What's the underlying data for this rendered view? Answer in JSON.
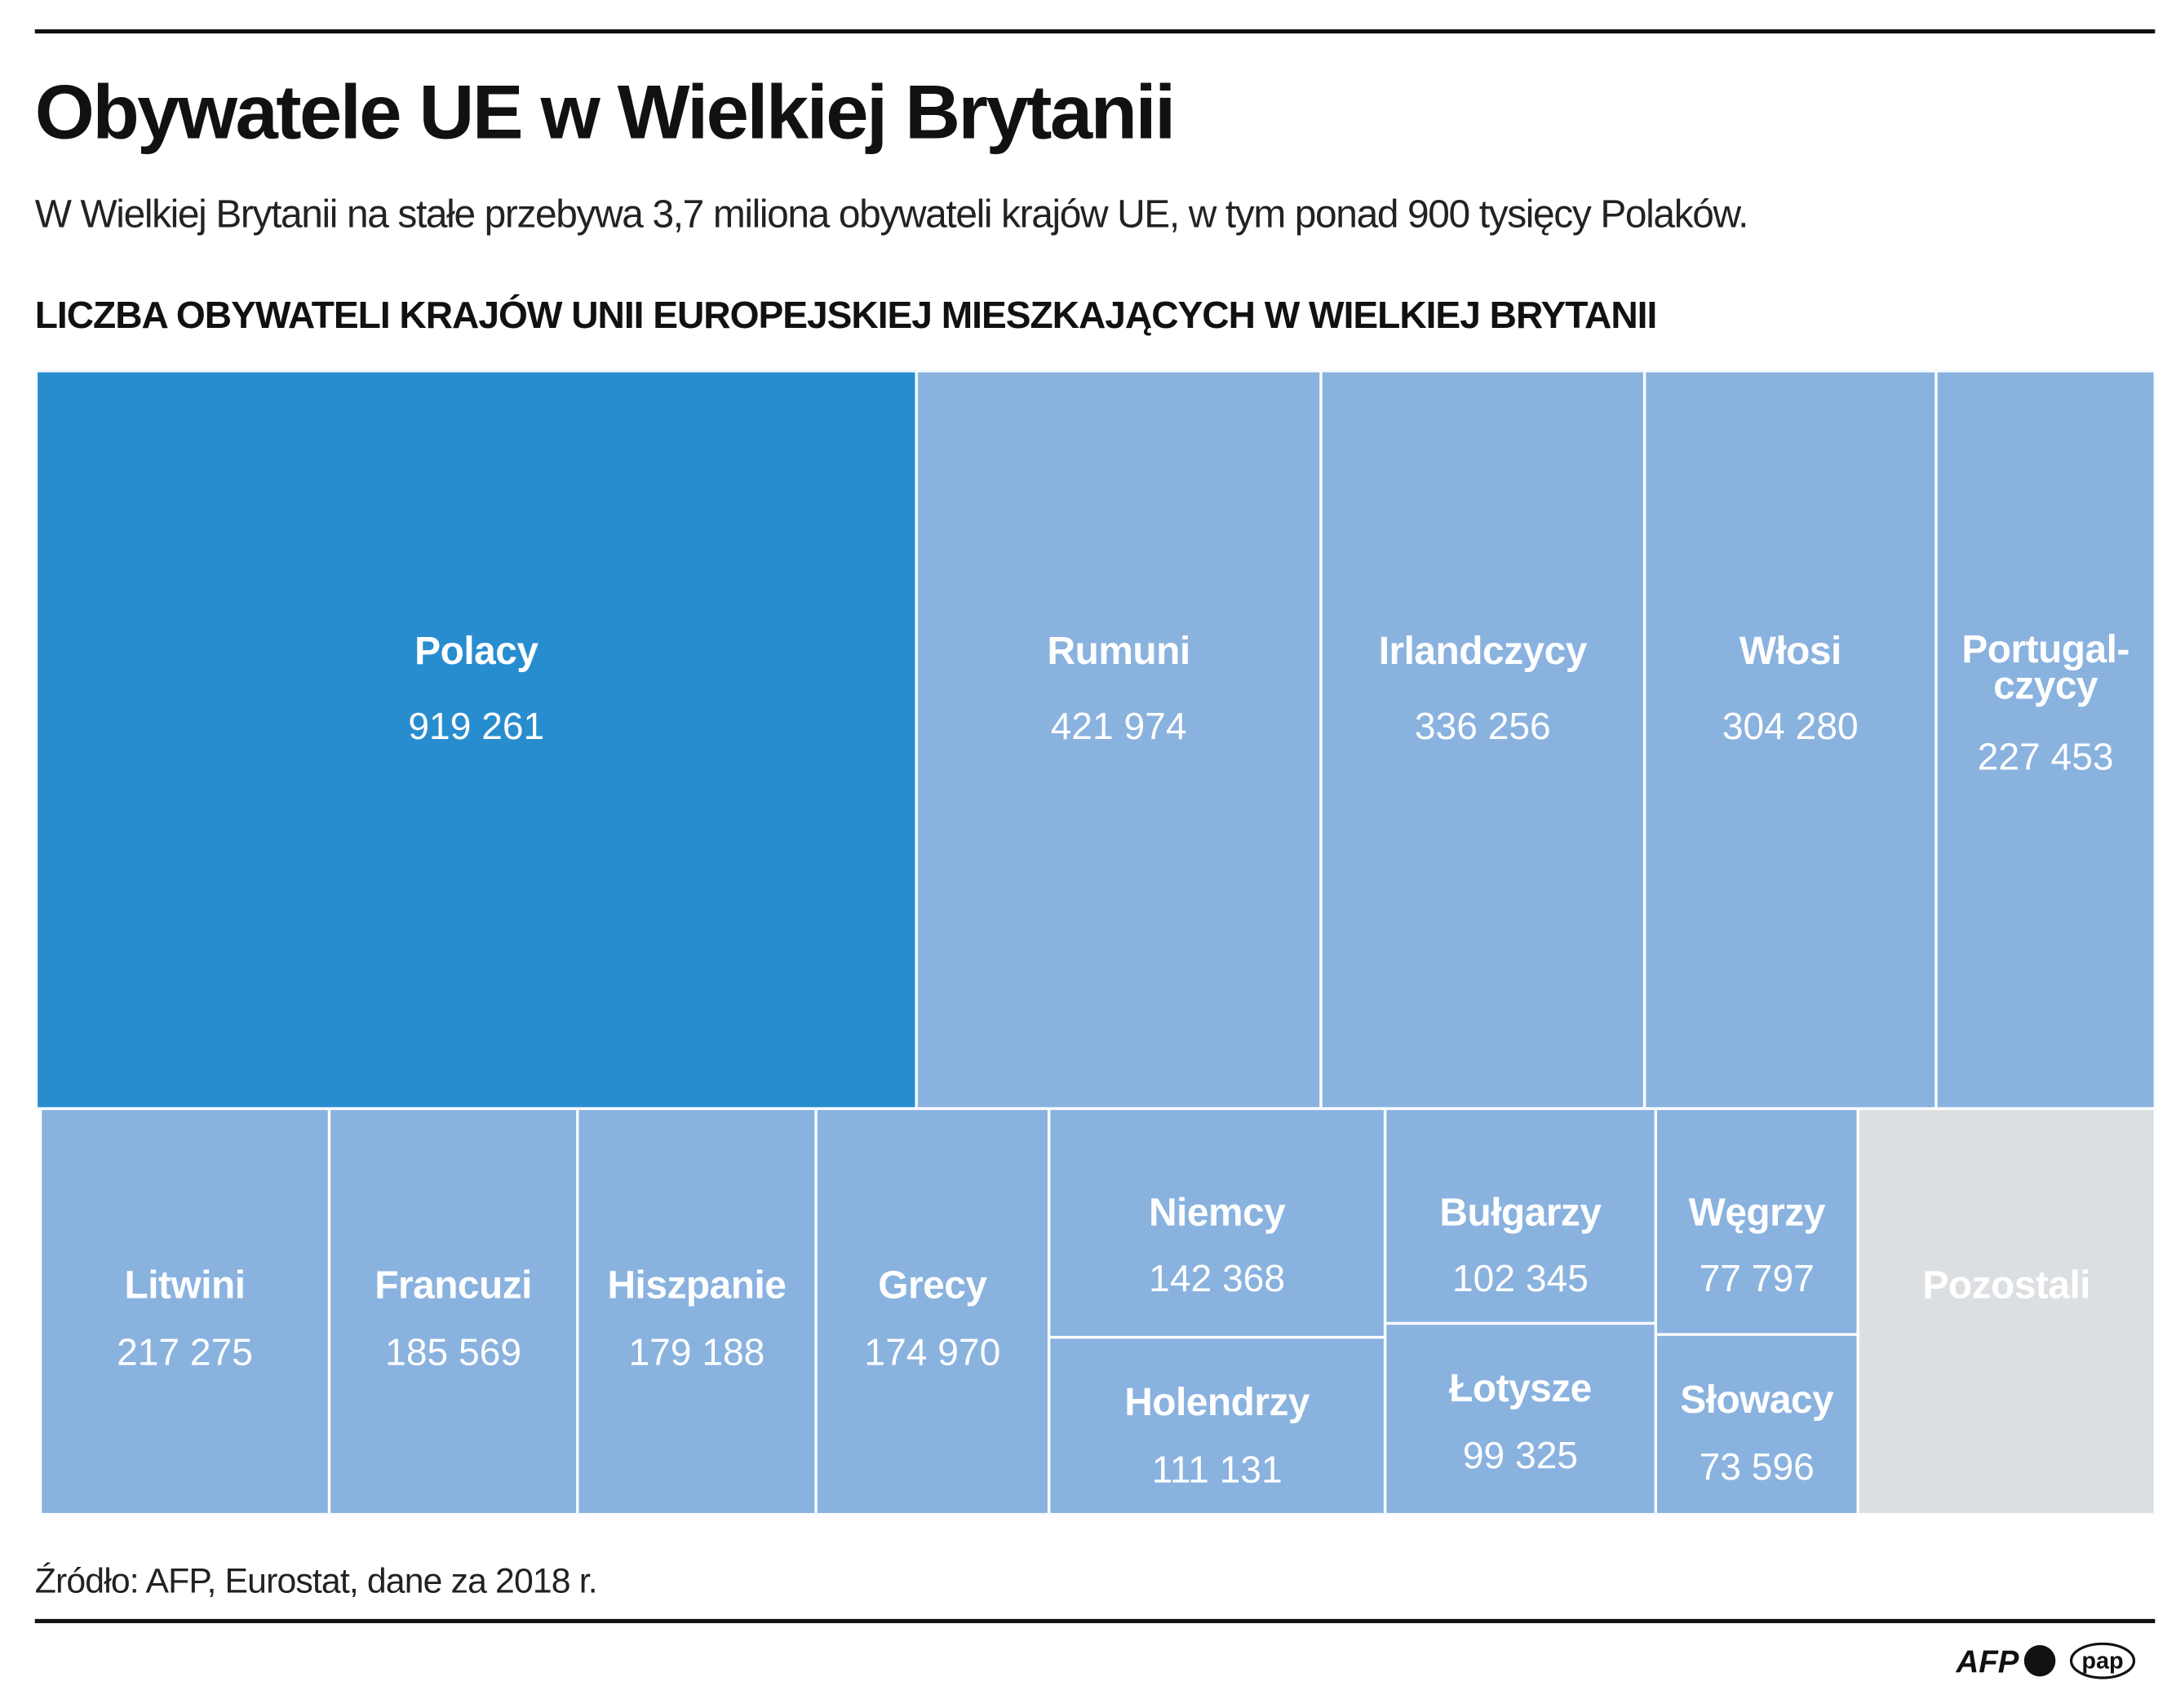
{
  "title": "Obywatele UE w Wielkiej Brytanii",
  "subtitle": "W Wielkiej Brytanii na stałe przebywa 3,7 miliona obywateli krajów UE, w tym ponad 900 tysięcy Polaków.",
  "source": "Źródło: AFP, Eurostat, dane za 2018 r.",
  "logos": [
    "AFP",
    "pap"
  ],
  "colors": {
    "highlight": "#288dcf",
    "default": "#89b2df",
    "other": "#dcdfe2"
  },
  "chart_data": {
    "type": "treemap",
    "title": "LICZBA OBYWATELI KRAJÓW UNII EUROPEJSKIEJ MIESZKAJĄCYCH W WIELKIEJ BRYTANII",
    "items": [
      {
        "label": "Polacy",
        "value": 919261,
        "value_text": "919 261"
      },
      {
        "label": "Rumuni",
        "value": 421974,
        "value_text": "421 974"
      },
      {
        "label": "Irlandczycy",
        "value": 336256,
        "value_text": "336 256"
      },
      {
        "label": "Włosi",
        "value": 304280,
        "value_text": "304 280"
      },
      {
        "label": "Portugal-\nczycy",
        "value": 227453,
        "value_text": "227 453"
      },
      {
        "label": "Litwini",
        "value": 217275,
        "value_text": "217 275"
      },
      {
        "label": "Francuzi",
        "value": 185569,
        "value_text": "185 569"
      },
      {
        "label": "Hiszpanie",
        "value": 179188,
        "value_text": "179 188"
      },
      {
        "label": "Grecy",
        "value": 174970,
        "value_text": "174 970"
      },
      {
        "label": "Niemcy",
        "value": 142368,
        "value_text": "142 368"
      },
      {
        "label": "Holendrzy",
        "value": 111131,
        "value_text": "111 131"
      },
      {
        "label": "Bułgarzy",
        "value": 102345,
        "value_text": "102 345"
      },
      {
        "label": "Łotysze",
        "value": 99325,
        "value_text": "99 325"
      },
      {
        "label": "Węgrzy",
        "value": 77797,
        "value_text": "77 797"
      },
      {
        "label": "Słowacy",
        "value": 73596,
        "value_text": "73 596"
      },
      {
        "label": "Pozostali",
        "value": null,
        "value_text": ""
      }
    ]
  }
}
